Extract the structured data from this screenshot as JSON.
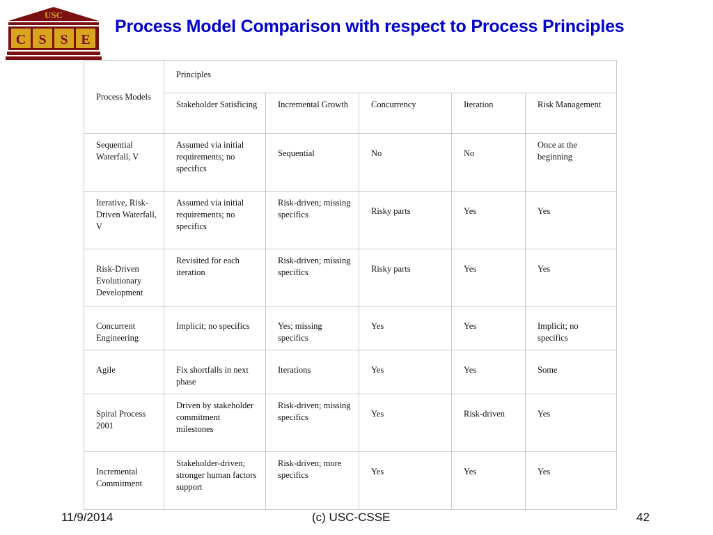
{
  "logo": {
    "top_text": "USC",
    "letters": [
      "C",
      "S",
      "S",
      "E"
    ]
  },
  "title": "Process Model Comparison with respect to Process Principles",
  "table": {
    "corner_header": "Process Models",
    "group_header": "Principles",
    "columns": [
      "Stakeholder Satisficing",
      "Incremental Growth",
      "Concurrency",
      "Iteration",
      "Risk Management"
    ],
    "rows": [
      {
        "model": "Sequential Waterfall, V",
        "cells": [
          "Assumed via initial requirements; no specifics",
          "Sequential",
          "No",
          "No",
          "Once at the beginning"
        ]
      },
      {
        "model": "Iterative, Risk-Driven Waterfall, V",
        "cells": [
          "Assumed via initial requirements; no specifics",
          "Risk-driven; missing specifics",
          "Risky parts",
          "Yes",
          "Yes"
        ]
      },
      {
        "model": "Risk-Driven Evolutionary Development",
        "cells": [
          "Revisited for each iteration",
          "Risk-driven; missing specifics",
          "Risky parts",
          "Yes",
          "Yes"
        ]
      },
      {
        "model": "Concurrent Engineering",
        "cells": [
          "Implicit; no specifics",
          "Yes; missing specifics",
          "Yes",
          "Yes",
          "Implicit; no specifics"
        ]
      },
      {
        "model": "Agile",
        "cells": [
          "Fix shortfalls in next phase",
          "Iterations",
          "Yes",
          "Yes",
          "Some"
        ]
      },
      {
        "model": "Spiral Process 2001",
        "cells": [
          "Driven by stakeholder commitment milestones",
          "Risk-driven; missing specifics",
          "Yes",
          "Risk-driven",
          "Yes"
        ]
      },
      {
        "model": "Incremental Commitment",
        "cells": [
          "Stakeholder-driven; stronger human factors support",
          "Risk-driven; more specifics",
          "Yes",
          "Yes",
          "Yes"
        ]
      }
    ]
  },
  "footer": {
    "date": "11/9/2014",
    "center": "(c) USC-CSSE",
    "page": "42"
  },
  "colors": {
    "title": "#0000cc",
    "logo_dark": "#7a1010",
    "logo_gold": "#d9a520"
  }
}
